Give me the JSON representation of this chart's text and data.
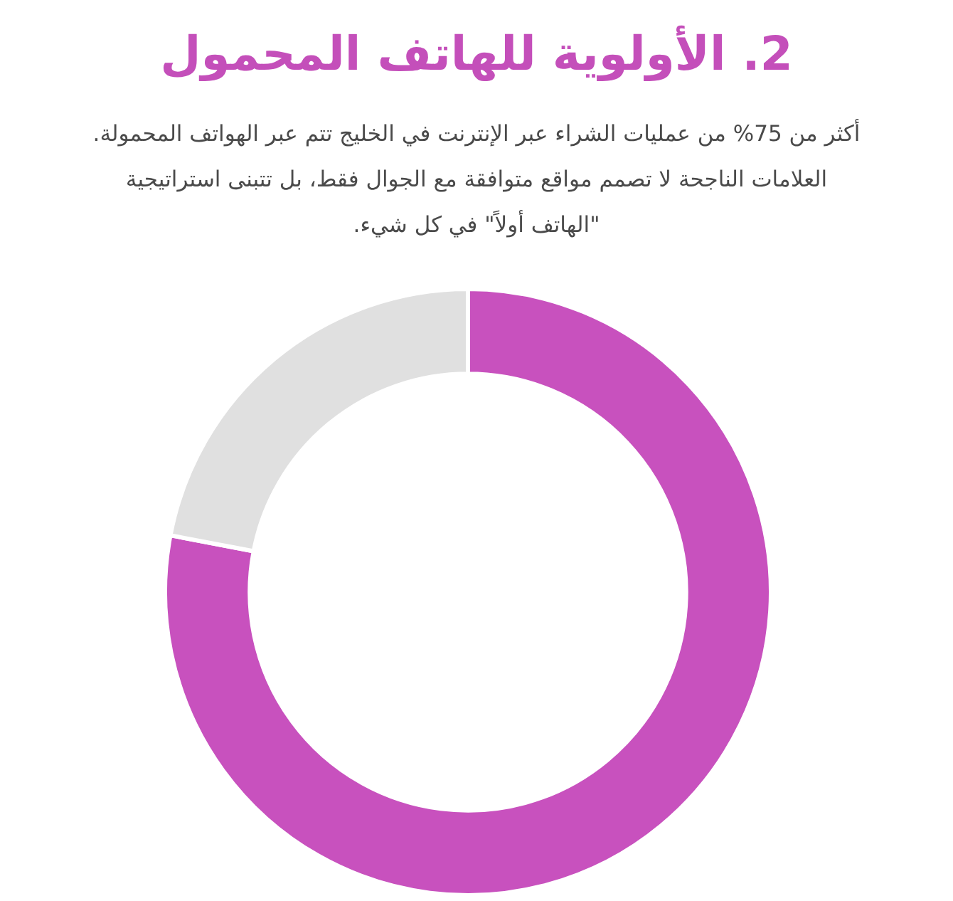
{
  "chart_data": {
    "type": "donut",
    "title": "2. الأولوية للهاتف المحمول",
    "subtitle": "أكثر من 75% من عمليات الشراء عبر الإنترنت في الخليج تتم عبر الهواتف المحمولة. العلامات الناجحة لا تصمم مواقع متوافقة مع الجوال فقط، بل تتبنى استراتيجية \"الهاتف أولاً\" في كل شيء.",
    "categories": [
      null,
      null
    ],
    "values": [
      78,
      22
    ],
    "colors": [
      "#c851be",
      "#e0e0e0"
    ]
  }
}
